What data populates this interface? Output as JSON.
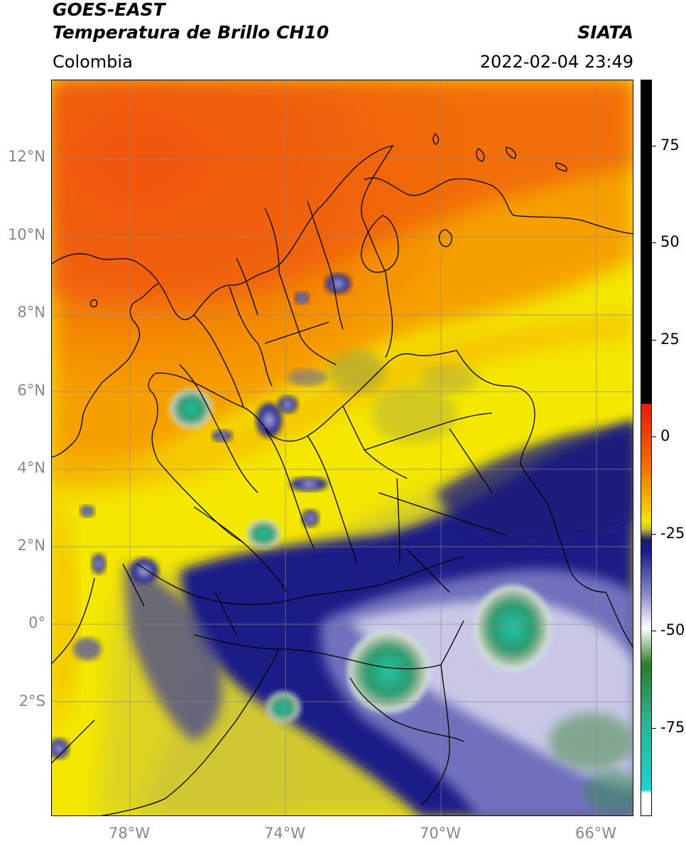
{
  "header": {
    "satellite": "GOES-EAST",
    "product": "Temperatura de Brillo CH10",
    "agency": "SIATA",
    "region": "Colombia",
    "timestamp": "2022-02-04 23:49"
  },
  "map": {
    "lat_labels": [
      "12°N",
      "10°N",
      "8°N",
      "6°N",
      "4°N",
      "2°N",
      "0°",
      "2°S"
    ],
    "lon_labels": [
      "78°W",
      "74°W",
      "70°W",
      "66°W"
    ]
  },
  "colorbar": {
    "tick_labels": [
      "75",
      "50",
      "25",
      "0",
      "-25",
      "-50",
      "-75"
    ],
    "stops": [
      {
        "color": "#000000",
        "frac": 0.0
      },
      {
        "color": "#000000",
        "frac": 0.44
      },
      {
        "color": "#e41a0c",
        "frac": 0.44
      },
      {
        "color": "#f06a00",
        "frac": 0.52
      },
      {
        "color": "#f5c800",
        "frac": 0.585
      },
      {
        "color": "#f0e600",
        "frac": 0.6
      },
      {
        "color": "#c8c034",
        "frac": 0.61
      },
      {
        "color": "#202060",
        "frac": 0.625
      },
      {
        "color": "#1a1a8c",
        "frac": 0.64
      },
      {
        "color": "#8c8cc8",
        "frac": 0.7
      },
      {
        "color": "#ffffff",
        "frac": 0.745
      },
      {
        "color": "#2a7a2a",
        "frac": 0.795
      },
      {
        "color": "#2ab48c",
        "frac": 0.87
      },
      {
        "color": "#1ed2d2",
        "frac": 0.965
      },
      {
        "color": "#ffffff",
        "frac": 0.97
      },
      {
        "color": "#ffffff",
        "frac": 1.0
      }
    ]
  }
}
